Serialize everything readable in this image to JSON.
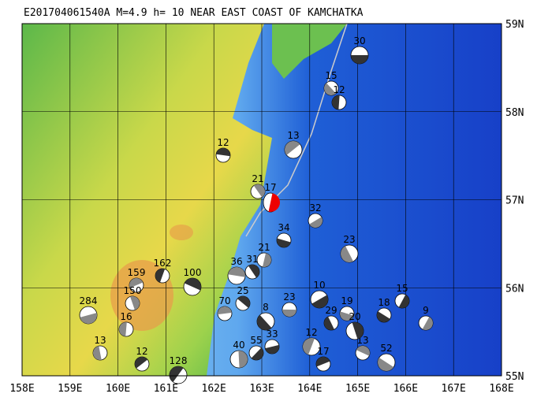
{
  "title": "E201704061540A M=4.9 h= 10 NEAR EAST COAST OF KAMCHATKA",
  "lon_labels": [
    "158E",
    "159E",
    "160E",
    "161E",
    "162E",
    "163E",
    "164E",
    "165E",
    "166E",
    "167E",
    "168E"
  ],
  "lat_labels": [
    "59N",
    "58N",
    "57N",
    "56N",
    "55N"
  ],
  "events": [
    "30",
    "15",
    "12",
    "13",
    "12",
    "21",
    "17",
    "32",
    "34",
    "23",
    "162",
    "159",
    "100",
    "150",
    "15",
    "284",
    "18",
    "13",
    "128",
    "70",
    "25",
    "40",
    "55",
    "23",
    "8",
    "16",
    "12",
    "36",
    "31",
    "21",
    "10",
    "19",
    "29",
    "12",
    "17",
    "13",
    "20",
    "9",
    "33",
    "52"
  ]
}
